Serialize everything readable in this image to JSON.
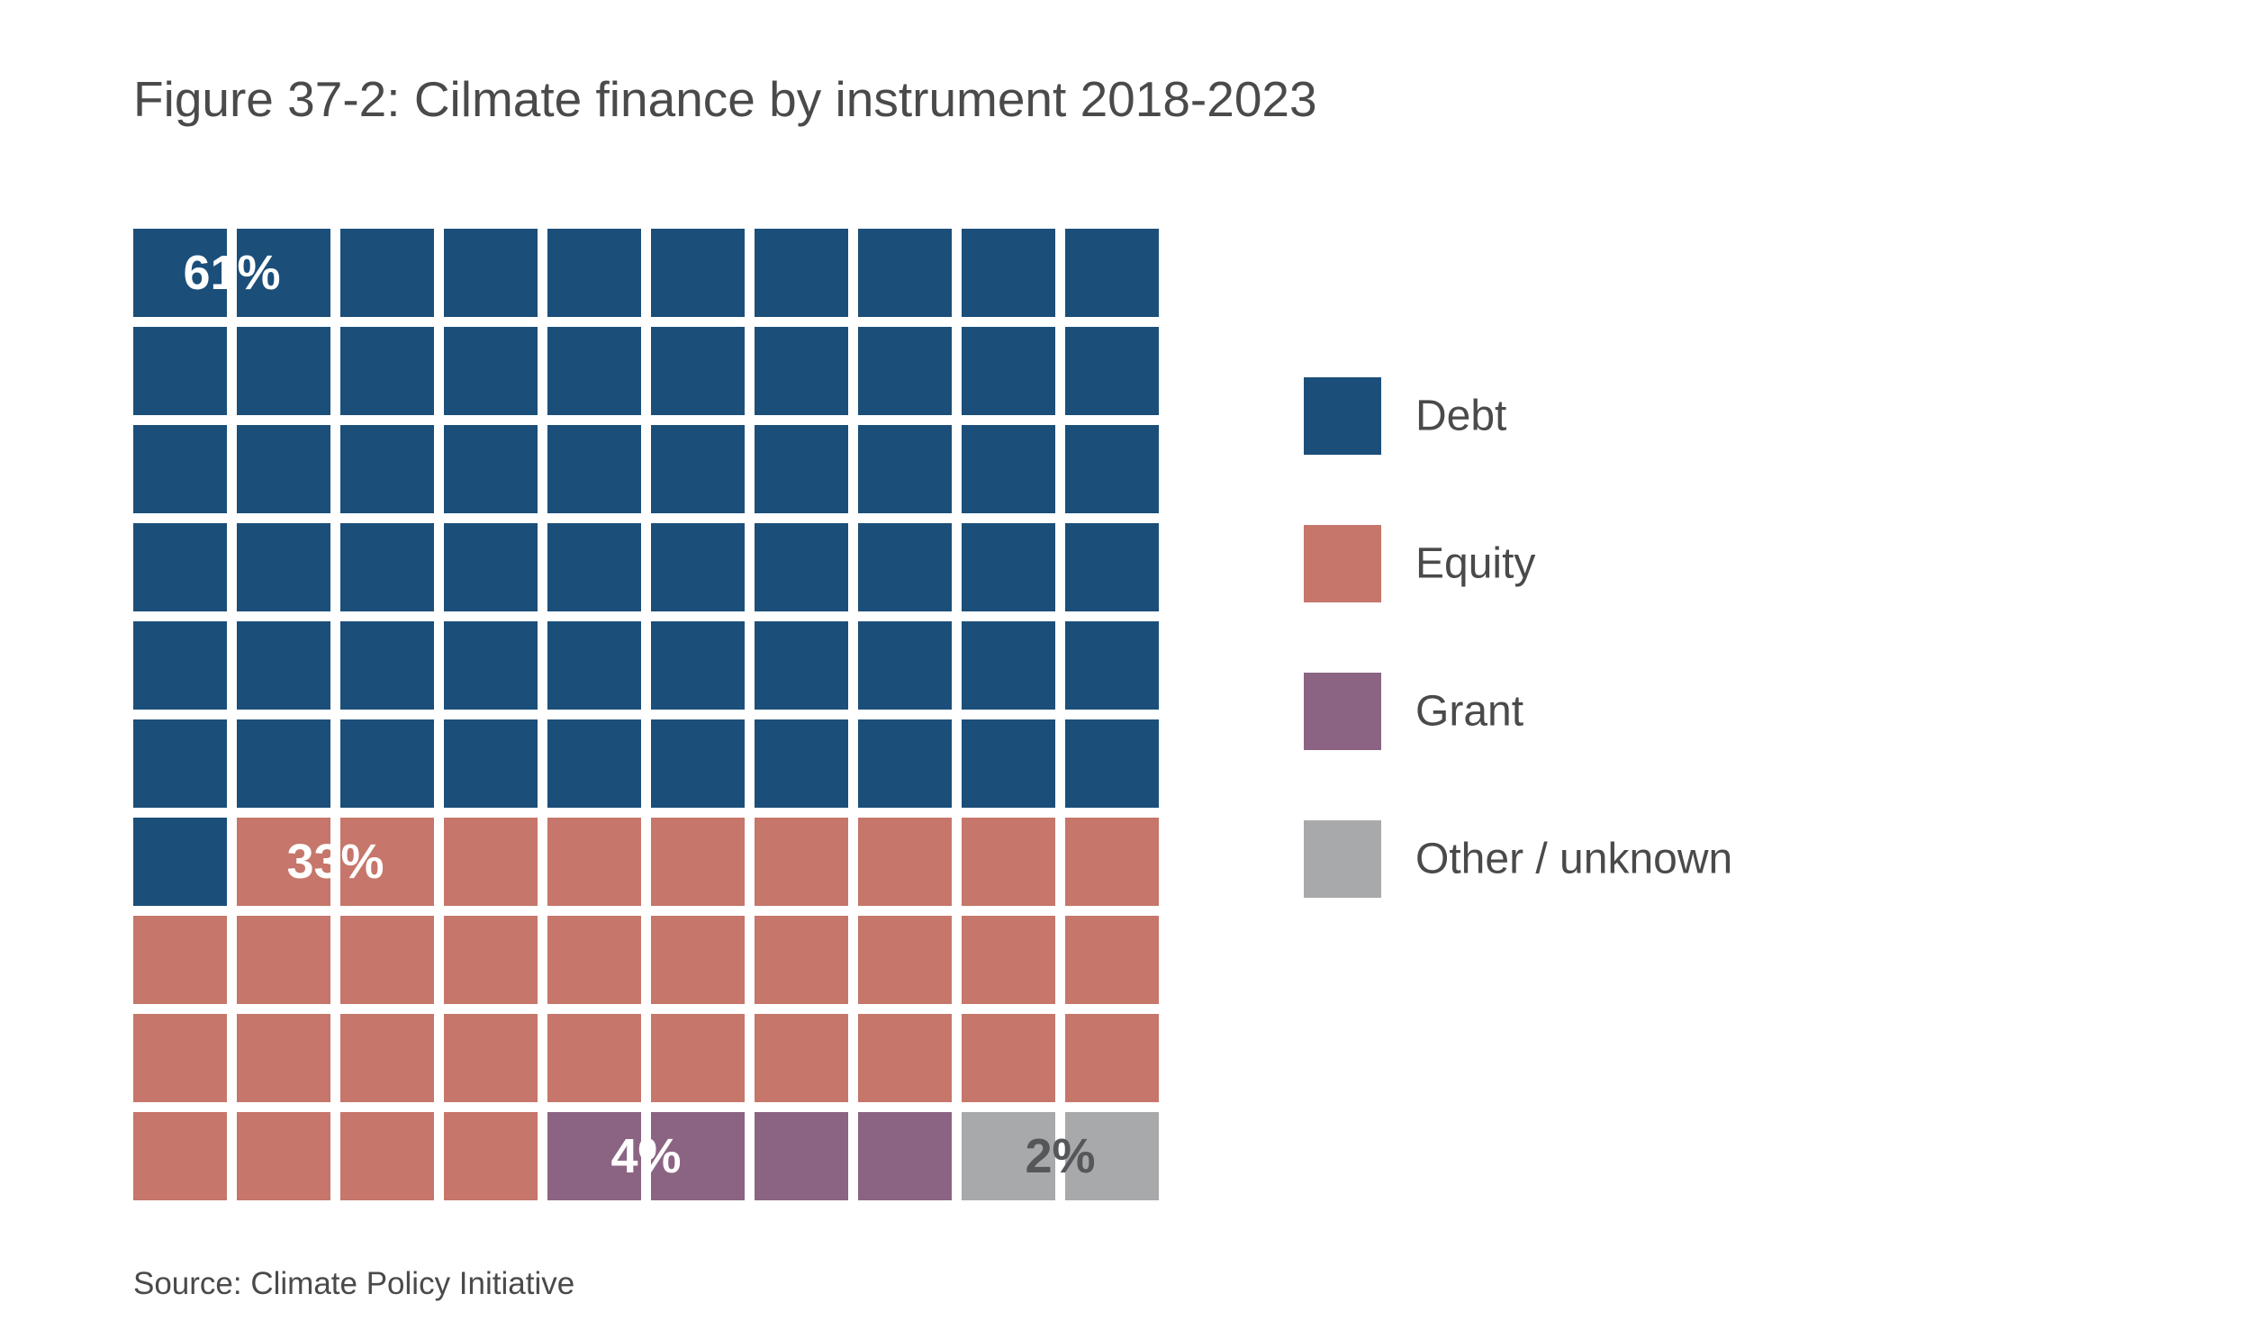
{
  "title": "Figure 37-2: Cilmate finance by instrument 2018-2023",
  "source": "Source: Climate Policy Initiative",
  "chart_data": {
    "type": "waffle",
    "total_cells": 100,
    "grid": {
      "rows": 10,
      "cols": 10
    },
    "series": [
      {
        "name": "Debt",
        "value": 61,
        "label": "61%",
        "color": "#1b4f7a",
        "label_color": "#ffffff"
      },
      {
        "name": "Equity",
        "value": 33,
        "label": "33%",
        "color": "#c6766a",
        "label_color": "#ffffff"
      },
      {
        "name": "Grant",
        "value": 4,
        "label": "4%",
        "color": "#8c6483",
        "label_color": "#ffffff"
      },
      {
        "name": "Other / unknown",
        "value": 2,
        "label": "2%",
        "color": "#a8a9ab",
        "label_color": "#55575a"
      }
    ],
    "legend_position": "right"
  }
}
